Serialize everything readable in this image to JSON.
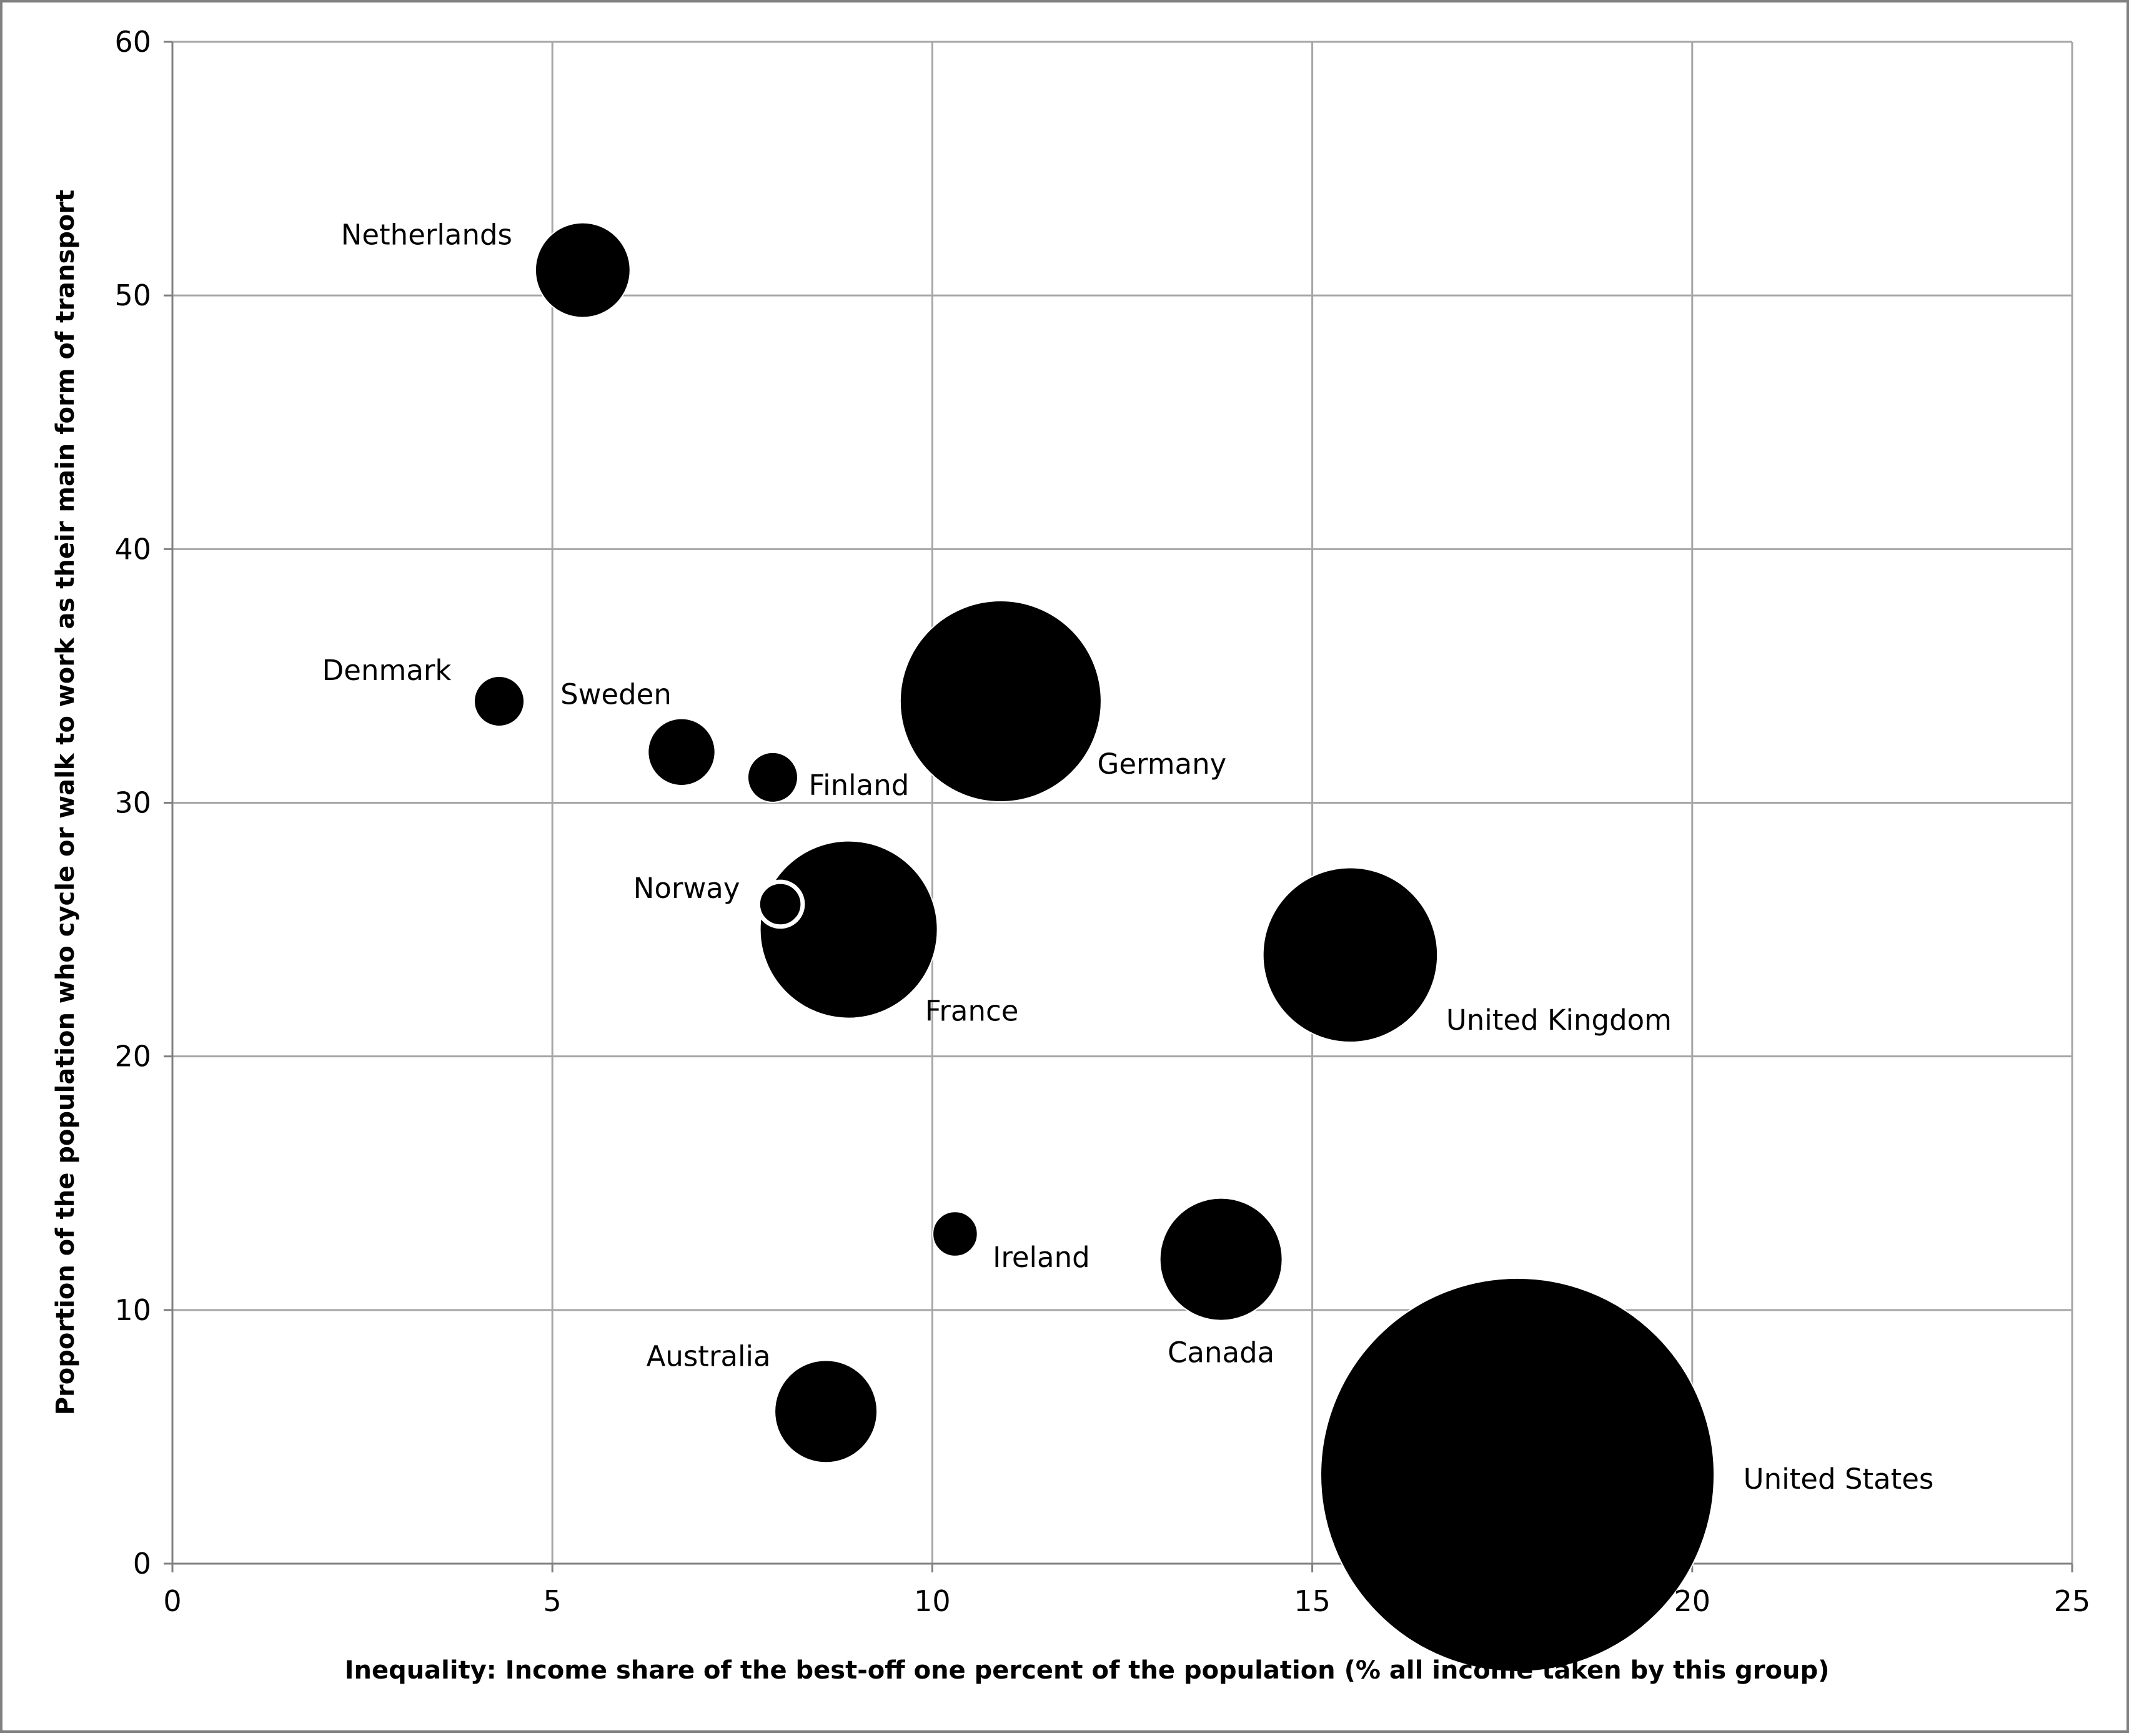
{
  "chart_data": {
    "type": "bubble",
    "title": "",
    "xlabel": "Inequality: Income share of the best-off one percent of the population (% all income taken by this group)",
    "ylabel": "Proportion of the population who cycle or walk to work as their main form of transport",
    "xlim": [
      0,
      25
    ],
    "ylim": [
      0,
      60
    ],
    "xticks": [
      0,
      5,
      10,
      15,
      20,
      25
    ],
    "yticks": [
      0,
      10,
      20,
      30,
      40,
      50,
      60
    ],
    "grid": true,
    "legend": "none",
    "bubble_color": "#000000",
    "gridline_color": "#a6a6a6",
    "points": [
      {
        "label": "Netherlands",
        "x": 5.4,
        "y": 51,
        "size": 18
      },
      {
        "label": "Denmark",
        "x": 4.3,
        "y": 34,
        "size": 5
      },
      {
        "label": "Sweden",
        "x": 6.7,
        "y": 32,
        "size": 9
      },
      {
        "label": "Finland",
        "x": 7.9,
        "y": 31,
        "size": 5
      },
      {
        "label": "Germany",
        "x": 10.9,
        "y": 34,
        "size": 81
      },
      {
        "label": "Norway",
        "x": 8.0,
        "y": 26,
        "size": 4
      },
      {
        "label": "France",
        "x": 8.9,
        "y": 25,
        "size": 63
      },
      {
        "label": "United Kingdom",
        "x": 15.5,
        "y": 24,
        "size": 61
      },
      {
        "label": "Ireland",
        "x": 10.3,
        "y": 13,
        "size": 4
      },
      {
        "label": "Canada",
        "x": 13.8,
        "y": 12,
        "size": 30
      },
      {
        "label": "Australia",
        "x": 8.6,
        "y": 6,
        "size": 21
      },
      {
        "label": "United States",
        "x": 17.7,
        "y": 3.5,
        "size": 310
      }
    ]
  }
}
